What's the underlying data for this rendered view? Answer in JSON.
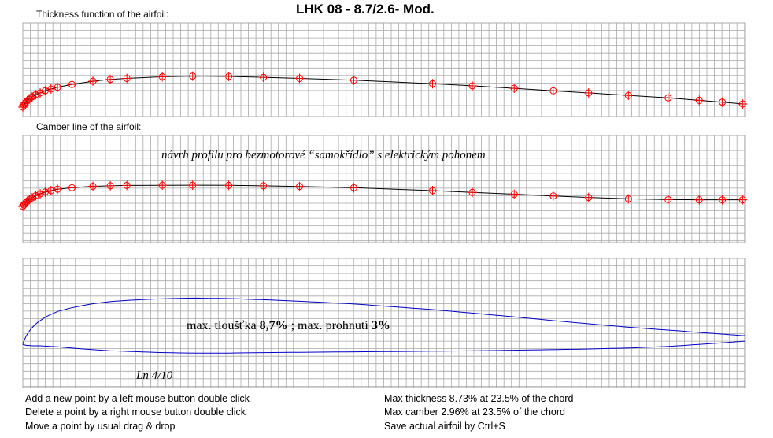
{
  "title": "LHK  08 - 8.7/2.6- Mod.",
  "thickness_panel": {
    "label": "Thickness function of the airfoil:"
  },
  "camber_panel": {
    "label": "Camber line of the airfoil:",
    "note": "návrh profilu pro bezmotorové “samokřídlo” s elektrickým pohonem"
  },
  "profile_panel": {
    "note_prefix": "max. tloušťka",
    "thickness_value": "8,7%",
    "note_middle": "; max. prohnutí",
    "camber_value": "3%",
    "ln_label": "Ln 4/10"
  },
  "help": {
    "add": "Add a new point by a left mouse button double click",
    "delete": "Delete a point by a right mouse button double click",
    "move": "Move a point by usual drag & drop"
  },
  "stats": {
    "max_thickness": "Max thickness 8.73% at 23.5% of the chord",
    "max_camber": "Max camber 2.96% at 23.5% of the chord",
    "save": "Save actual airfoil by Ctrl+S"
  },
  "colors": {
    "grid": "#a8a8a8",
    "curve": "#000000",
    "control_point": "#ff0000",
    "airfoil_outline": "#0000c8"
  },
  "control_points_x": [
    0,
    0.15,
    0.35,
    0.6,
    0.9,
    1.3,
    1.8,
    2.4,
    3.1,
    3.9,
    4.8,
    6.8,
    9.7,
    12.1,
    14.4,
    19.3,
    23.5,
    28.5,
    33.3,
    38.3,
    45.8,
    56.7,
    62.2,
    68.0,
    73.4,
    78.3,
    83.8,
    89.3,
    93.6,
    96.8,
    99.6
  ],
  "thickness_values": [
    0,
    0.6,
    1.2,
    1.8,
    2.3,
    2.9,
    3.5,
    4.0,
    4.6,
    5.1,
    5.6,
    6.4,
    7.3,
    7.8,
    8.1,
    8.55,
    8.73,
    8.65,
    8.4,
    8.1,
    7.6,
    6.6,
    6.0,
    5.3,
    4.6,
    4.0,
    3.3,
    2.6,
    1.9,
    1.4,
    0.9
  ],
  "camber_values": [
    0,
    0.2,
    0.45,
    0.7,
    0.95,
    1.2,
    1.5,
    1.75,
    2.0,
    2.2,
    2.4,
    2.6,
    2.8,
    2.87,
    2.92,
    2.95,
    2.96,
    2.93,
    2.87,
    2.78,
    2.6,
    2.2,
    1.95,
    1.7,
    1.45,
    1.25,
    1.05,
    0.95,
    0.92,
    0.92,
    0.92
  ]
}
